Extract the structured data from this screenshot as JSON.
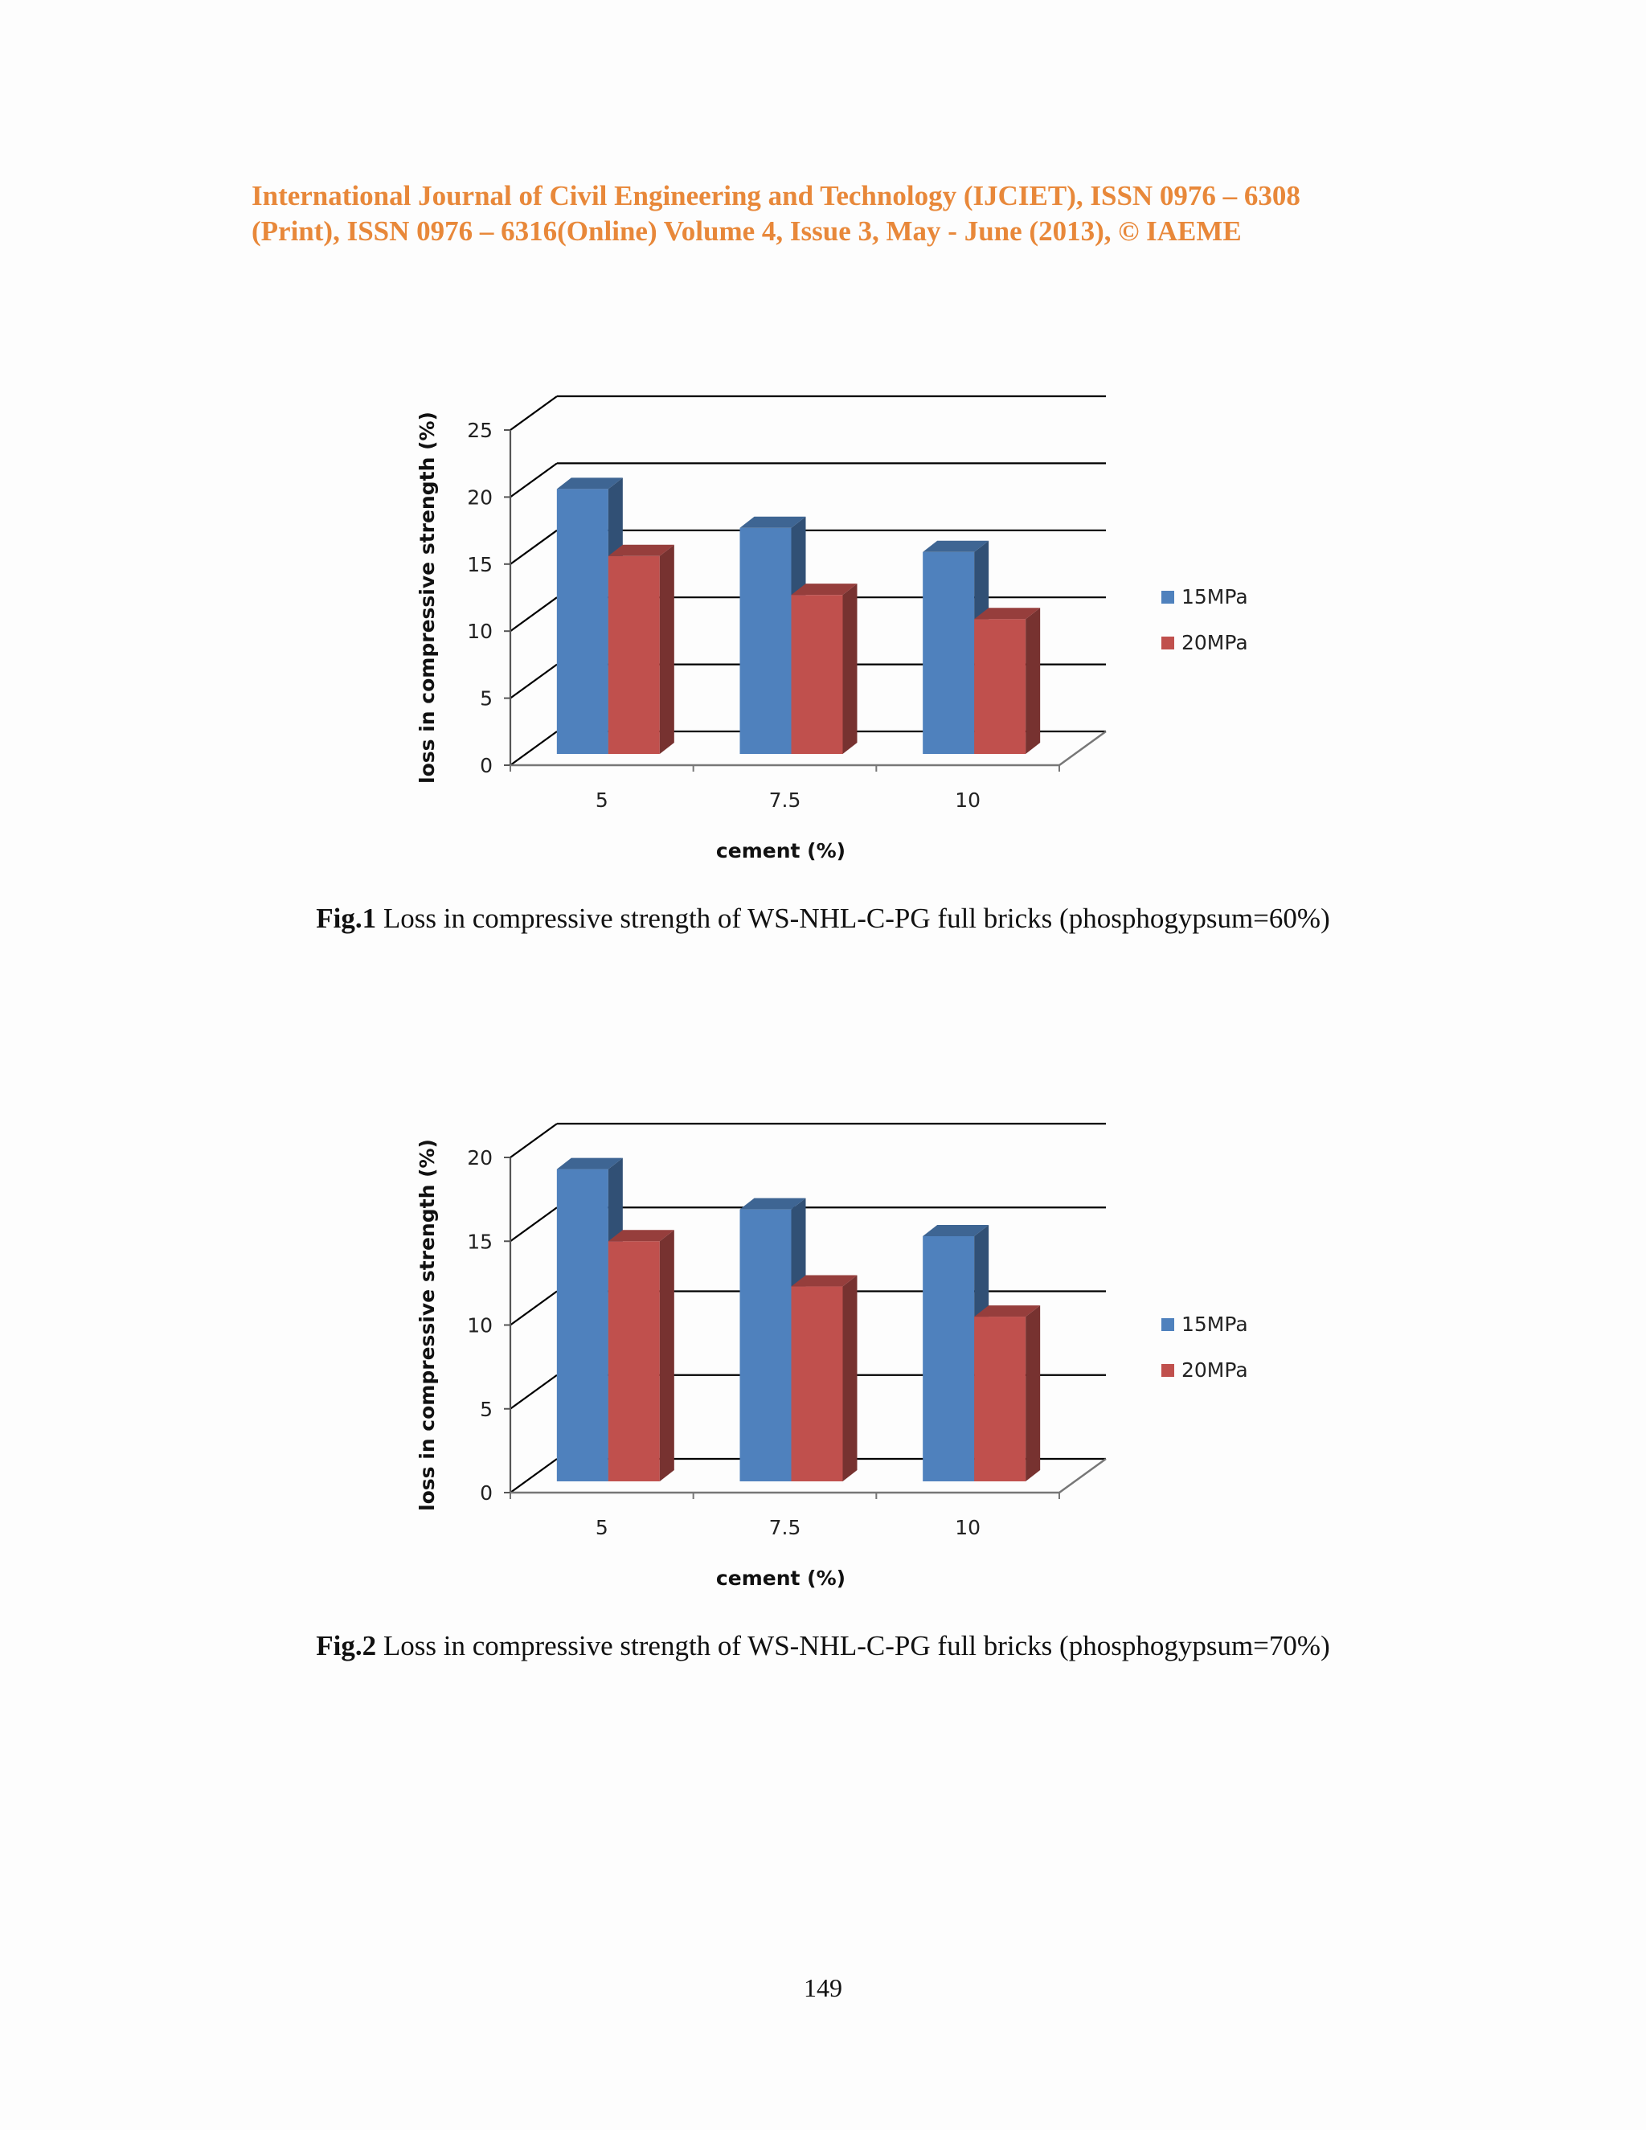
{
  "header": {
    "line1": "International Journal of Civil Engineering and Technology (IJCIET), ISSN 0976 – 6308",
    "line2": "(Print), ISSN 0976 – 6316(Online) Volume 4, Issue 3, May - June (2013), © IAEME"
  },
  "colors": {
    "header": "#e8883a",
    "series_15": "#4f81bd",
    "series_20": "#c0504d"
  },
  "chart_data": [
    {
      "type": "bar",
      "title": "",
      "xlabel": "cement (%)",
      "ylabel": "loss in compressive strength (%)",
      "categories": [
        "5",
        "7.5",
        "10"
      ],
      "ylim": [
        0,
        25
      ],
      "yticks": [
        "0",
        "5",
        "10",
        "15",
        "20",
        "25"
      ],
      "series": [
        {
          "name": "15MPa",
          "values": [
            20.6,
            17.7,
            15.9
          ]
        },
        {
          "name": "20MPa",
          "values": [
            15.6,
            12.7,
            10.9
          ]
        }
      ],
      "legend": "right",
      "grid": true
    },
    {
      "type": "bar",
      "title": "",
      "xlabel": "cement (%)",
      "ylabel": "loss in compressive strength (%)",
      "categories": [
        "5",
        "7.5",
        "10"
      ],
      "ylim": [
        0,
        20
      ],
      "yticks": [
        "0",
        "5",
        "10",
        "15",
        "20"
      ],
      "series": [
        {
          "name": "15MPa",
          "values": [
            19.3,
            16.9,
            15.3
          ]
        },
        {
          "name": "20MPa",
          "values": [
            15.0,
            12.3,
            10.5
          ]
        }
      ],
      "legend": "right",
      "grid": true
    }
  ],
  "captions": {
    "fig1_label": "Fig.1",
    "fig1_text": " Loss in compressive strength of WS-NHL-C-PG full bricks (phosphogypsum=60%)",
    "fig2_label": "Fig.2",
    "fig2_text": " Loss in compressive strength of WS-NHL-C-PG full bricks (phosphogypsum=70%)"
  },
  "page_number": "149"
}
